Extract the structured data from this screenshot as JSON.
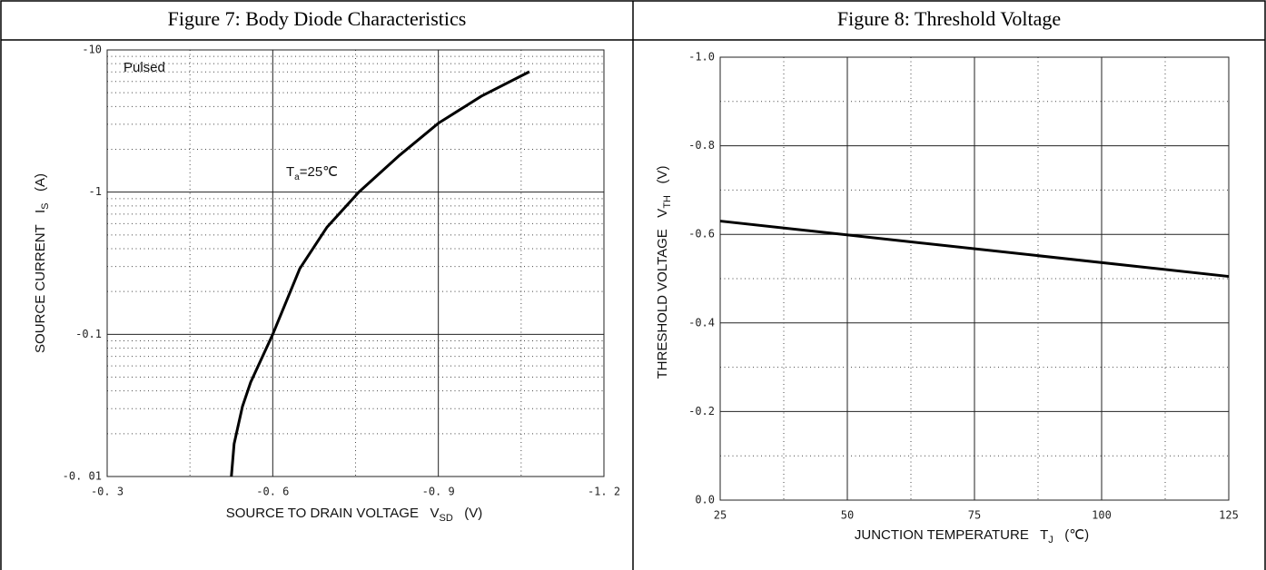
{
  "chart_data": [
    {
      "type": "line",
      "title": "Figure 7: Body Diode Characteristics",
      "xlabel": {
        "text": "SOURCE TO DRAIN VOLTAGE   V",
        "sub": "SD",
        "unit": "   (V)"
      },
      "ylabel": {
        "text": "SOURCE CURRENT   I",
        "sub": "S",
        "unit": "   (A)"
      },
      "annotations": [
        {
          "text": "Pulsed"
        },
        {
          "text": "T",
          "sub": "a",
          "rest": "=25℃"
        }
      ],
      "xlim": [
        -0.3,
        -1.2
      ],
      "xticks": [
        {
          "value": -0.3,
          "label": "-0. 3"
        },
        {
          "value": -0.6,
          "label": "-0. 6"
        },
        {
          "value": -0.9,
          "label": "-0. 9"
        },
        {
          "value": -1.2,
          "label": "-1. 2"
        }
      ],
      "ylim": [
        -0.01,
        -10
      ],
      "yscale": "log",
      "yticks": [
        {
          "value": -0.01,
          "label": "-0. 01"
        },
        -0.1,
        -1,
        -10
      ],
      "grid": true,
      "minor_grid": true,
      "x": [
        -0.525,
        -0.53,
        -0.545,
        -0.56,
        -0.6,
        -0.649,
        -0.698,
        -0.756,
        -0.83,
        -0.9,
        -0.978,
        -1.065
      ],
      "series": [
        {
          "color": "#000000",
          "values": [
            -0.01,
            -0.017,
            -0.031,
            -0.046,
            -0.1,
            -0.29,
            -0.565,
            -1.0,
            -1.82,
            -3.05,
            -4.73,
            -7.03
          ]
        }
      ]
    },
    {
      "type": "line",
      "title": "Figure 8: Threshold Voltage",
      "xlabel": {
        "text": "JUNCTION TEMPERATURE   T",
        "sub": "J",
        "unit": "   (℃)"
      },
      "ylabel": {
        "text": "THRESHOLD VOLTAGE   V",
        "sub": "TH",
        "unit": "   (V)"
      },
      "xlim": [
        25,
        125
      ],
      "xticks": [
        25,
        50,
        75,
        100,
        125
      ],
      "ylim": [
        0,
        -1
      ],
      "yscale": "linear",
      "yticks": [
        {
          "value": 0,
          "label": "0.0"
        },
        -0.2,
        -0.4,
        -0.6,
        -0.8,
        {
          "value": -1,
          "label": "-1.0"
        }
      ],
      "grid": true,
      "minor_grid": true,
      "x": [
        25,
        125
      ],
      "series": [
        {
          "color": "#000000",
          "values": [
            -0.63,
            -0.505
          ]
        }
      ]
    }
  ]
}
